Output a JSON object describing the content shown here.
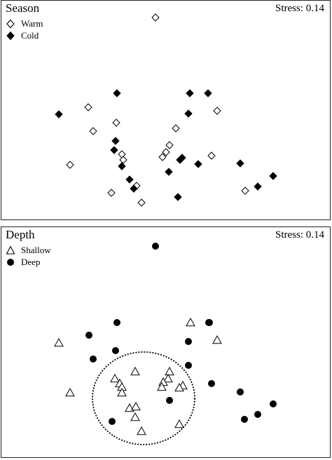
{
  "chart_data": [
    {
      "type": "scatter",
      "title": "Season",
      "annotation": "Stress: 0.14",
      "legend": [
        {
          "name": "Warm",
          "marker": "open-diamond"
        },
        {
          "name": "Cold",
          "marker": "filled-diamond"
        }
      ],
      "legend_position": "top-left",
      "axes_visible": false,
      "series": [
        {
          "name": "Warm",
          "marker": "open-diamond",
          "points": [
            [
              222,
              25
            ],
            [
              126,
              153
            ],
            [
              133,
              187
            ],
            [
              166,
              175
            ],
            [
              310,
              158
            ],
            [
              251,
              183
            ],
            [
              242,
              207
            ],
            [
              237,
              217
            ],
            [
              232,
              224
            ],
            [
              174,
              220
            ],
            [
              176,
              228
            ],
            [
              302,
              222
            ],
            [
              100,
              235
            ],
            [
              195,
              265
            ],
            [
              159,
              275
            ],
            [
              202,
              289
            ],
            [
              350,
              272
            ]
          ]
        },
        {
          "name": "Cold",
          "marker": "filled-diamond",
          "points": [
            [
              167,
              133
            ],
            [
              271,
              133
            ],
            [
              297,
              133
            ],
            [
              84,
              163
            ],
            [
              269,
              162
            ],
            [
              165,
              201
            ],
            [
              163,
              214
            ],
            [
              174,
              237
            ],
            [
              260,
              225
            ],
            [
              257,
              228
            ],
            [
              283,
              234
            ],
            [
              343,
              233
            ],
            [
              241,
              245
            ],
            [
              185,
              256
            ],
            [
              191,
              269
            ],
            [
              390,
              251
            ],
            [
              368,
              266
            ],
            [
              254,
              281
            ]
          ]
        }
      ]
    },
    {
      "type": "scatter",
      "title": "Depth",
      "annotation": "Stress: 0.14",
      "legend": [
        {
          "name": "Shallow",
          "marker": "open-triangle"
        },
        {
          "name": "Deep",
          "marker": "filled-circle"
        }
      ],
      "legend_position": "top-left",
      "axes_visible": false,
      "grouping_ellipse": {
        "style": "dashed"
      },
      "series": [
        {
          "name": "Shallow",
          "marker": "open-triangle",
          "points": [
            [
              272,
              460
            ],
            [
              310,
              485
            ],
            [
              84,
              489
            ],
            [
              193,
              530
            ],
            [
              242,
              530
            ],
            [
              164,
              540
            ],
            [
              240,
              540
            ],
            [
              171,
              547
            ],
            [
              174,
              552
            ],
            [
              233,
              545
            ],
            [
              231,
              552
            ],
            [
              261,
              550
            ],
            [
              256,
              553
            ],
            [
              100,
              560
            ],
            [
              174,
              560
            ],
            [
              185,
              582
            ],
            [
              193,
              595
            ],
            [
              194,
              580
            ],
            [
              202,
              615
            ],
            [
              256,
              605
            ]
          ]
        },
        {
          "name": "Deep",
          "marker": "filled-circle",
          "points": [
            [
              222,
              351
            ],
            [
              167,
              460
            ],
            [
              298,
              460
            ],
            [
              299,
              460
            ],
            [
              127,
              478
            ],
            [
              269,
              487
            ],
            [
              165,
              500
            ],
            [
              133,
              512
            ],
            [
              269,
              521
            ],
            [
              302,
              547
            ],
            [
              343,
              559
            ],
            [
              242,
              571
            ],
            [
              390,
              576
            ],
            [
              368,
              591
            ],
            [
              349,
              598
            ],
            [
              160,
              601
            ]
          ]
        }
      ]
    }
  ]
}
